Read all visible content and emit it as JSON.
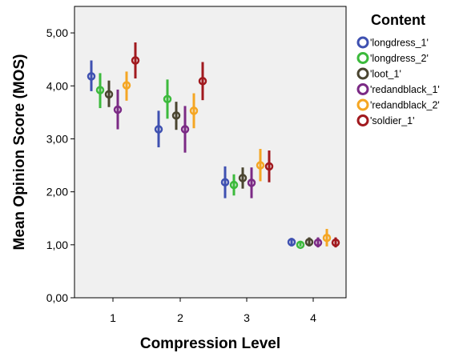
{
  "chart_data": {
    "type": "scatter",
    "subtype": "error-bar",
    "xlabel": "Compression Level",
    "ylabel": "Mean Opinion Score (MOS)",
    "categories": [
      "1",
      "2",
      "3",
      "4"
    ],
    "ylim": [
      0,
      5.5
    ],
    "yticks": [
      "0,00",
      "1,00",
      "2,00",
      "3,00",
      "4,00",
      "5,00"
    ],
    "ytick_values": [
      0,
      1,
      2,
      3,
      4,
      5
    ],
    "grid": false,
    "legend": {
      "title": "Content",
      "position": "right"
    },
    "series": [
      {
        "name": "'longdress_1'",
        "color": "#3f51b1",
        "mean": [
          4.18,
          3.18,
          2.18,
          1.05
        ],
        "lower": [
          3.9,
          2.84,
          1.88,
          0.97
        ],
        "upper": [
          4.48,
          3.53,
          2.48,
          1.13
        ]
      },
      {
        "name": "'longdress_2'",
        "color": "#3cba3c",
        "mean": [
          3.92,
          3.75,
          2.13,
          1.0
        ],
        "lower": [
          3.58,
          3.38,
          1.93,
          0.97
        ],
        "upper": [
          4.24,
          4.12,
          2.33,
          1.05
        ]
      },
      {
        "name": "'loot_1'",
        "color": "#4a4530",
        "mean": [
          3.84,
          3.44,
          2.26,
          1.05
        ],
        "lower": [
          3.6,
          3.17,
          2.06,
          0.97
        ],
        "upper": [
          4.1,
          3.7,
          2.46,
          1.14
        ]
      },
      {
        "name": "'redandblack_1'",
        "color": "#7b2a85",
        "mean": [
          3.55,
          3.18,
          2.17,
          1.04
        ],
        "lower": [
          3.18,
          2.74,
          1.88,
          0.95
        ],
        "upper": [
          3.93,
          3.62,
          2.46,
          1.14
        ]
      },
      {
        "name": "'redandblack_2'",
        "color": "#f5a623",
        "mean": [
          4.01,
          3.53,
          2.5,
          1.13
        ],
        "lower": [
          3.72,
          3.2,
          2.2,
          0.97
        ],
        "upper": [
          4.27,
          3.86,
          2.81,
          1.3
        ]
      },
      {
        "name": "'soldier_1'",
        "color": "#a1191e",
        "mean": [
          4.48,
          4.09,
          2.48,
          1.04
        ],
        "lower": [
          4.14,
          3.73,
          2.18,
          0.95
        ],
        "upper": [
          4.82,
          4.45,
          2.78,
          1.14
        ]
      }
    ]
  }
}
